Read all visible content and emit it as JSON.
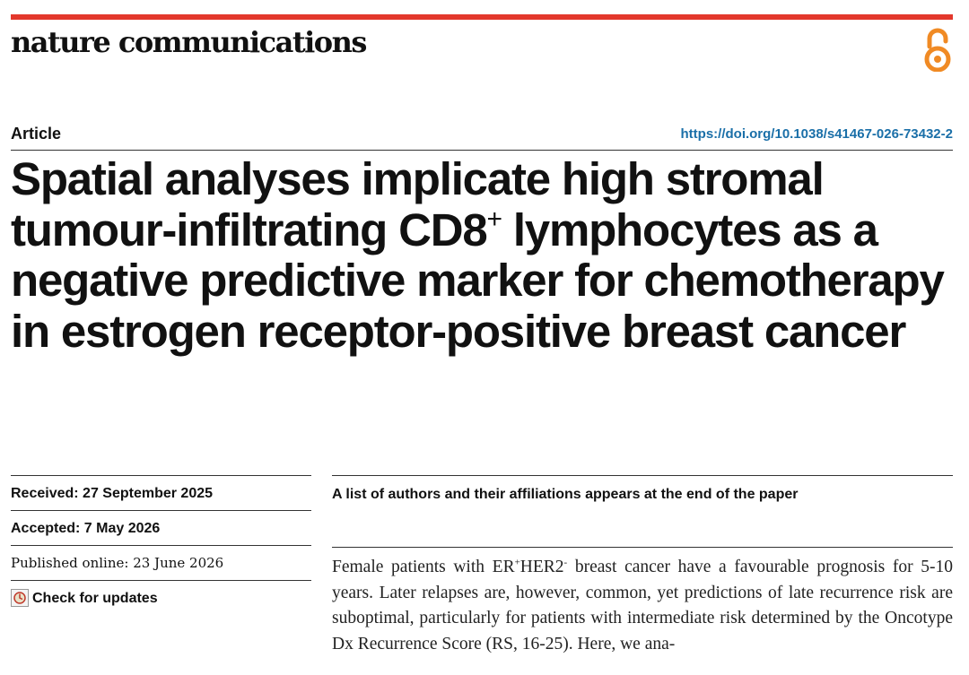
{
  "header": {
    "journal": "nature communications",
    "accent_color": "#e3382c",
    "oa_icon": "open-access-icon",
    "oa_color": "#f08a24"
  },
  "article": {
    "type": "Article",
    "doi": "https://doi.org/10.1038/s41467-026-73432-2",
    "title_part1": "Spatial analyses implicate high stromal tumour-infiltrating CD8",
    "title_sup": "+",
    "title_part2": " lymphocytes as a negative predictive marker for chemotherapy in estrogen receptor-positive breast cancer"
  },
  "dates": {
    "received": "Received: 27 September 2025",
    "accepted": "Accepted: 7 May 2026",
    "published": "Published online: 23 June 2026",
    "check_updates": "Check for updates"
  },
  "authors_note": "A list of authors and their affiliations appears at the end of the paper",
  "abstract": {
    "part1": "Female patients with ER",
    "sup1": "+",
    "part2": "HER2",
    "sup2": "-",
    "part3": " breast cancer have a favourable prognosis for 5-10 years. Later relapses are, however, common, yet predictions of late recurrence risk are suboptimal, particularly for patients with intermediate risk determined by the Oncotype Dx Recurrence Score (RS, 16-25). Here, we ana-"
  }
}
